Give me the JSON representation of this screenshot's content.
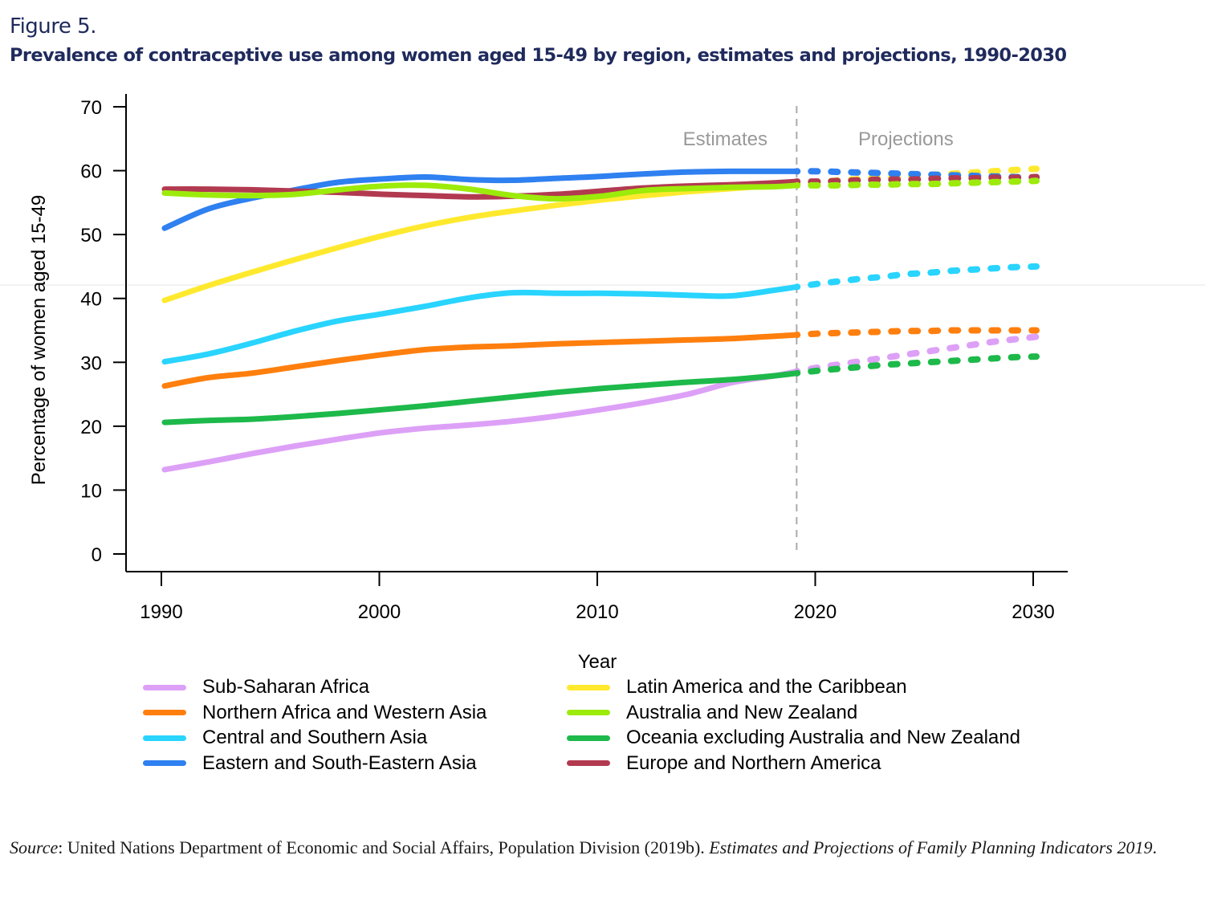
{
  "figure": {
    "label": "Figure 5.",
    "title": "Prevalence of contraceptive use among women aged 15-49 by region, estimates and projections, 1990-2030"
  },
  "source": {
    "prefix": "Source",
    "body": ": United Nations Department of Economic and Social Affairs, Population Division (2019b). ",
    "publication": "Estimates and Projections of Family Planning Indicators 2019",
    "suffix": "."
  },
  "chart_data": {
    "type": "line",
    "title": "Prevalence of contraceptive use among women aged 15-49 by region, estimates and projections, 1990-2030",
    "xlabel": "Year",
    "ylabel": "Percentage of women aged 15-49",
    "xlim": [
      1988.5,
      2031.5
    ],
    "ylim": [
      0,
      70
    ],
    "xticks": [
      1990,
      2000,
      2010,
      2020,
      2030
    ],
    "yticks": [
      0,
      10,
      20,
      30,
      40,
      50,
      60,
      70
    ],
    "grid": false,
    "legend_position": "bottom",
    "divider": {
      "year": 2019,
      "left_label": "Estimates",
      "right_label": "Projections"
    },
    "x_estimates": [
      1990,
      1992,
      1994,
      1996,
      1998,
      2000,
      2002,
      2004,
      2006,
      2008,
      2010,
      2012,
      2014,
      2016,
      2018,
      2019
    ],
    "x_projections": [
      2019,
      2020,
      2021,
      2022,
      2023,
      2024,
      2025,
      2026,
      2027,
      2028,
      2029,
      2030
    ],
    "series": [
      {
        "name": "Sub-Saharan Africa",
        "color": "#dda0f7",
        "estimates": [
          13.2,
          14.4,
          15.7,
          16.9,
          18.0,
          19.0,
          19.7,
          20.2,
          20.8,
          21.6,
          22.6,
          23.7,
          25.0,
          26.8,
          27.9,
          28.6
        ],
        "projections": [
          28.6,
          29.2,
          29.7,
          30.2,
          30.7,
          31.2,
          31.7,
          32.2,
          32.7,
          33.2,
          33.6,
          34.0
        ]
      },
      {
        "name": "Northern Africa and Western Asia",
        "color": "#ff7f0e",
        "estimates": [
          26.3,
          27.6,
          28.3,
          29.3,
          30.3,
          31.2,
          32.0,
          32.4,
          32.6,
          32.9,
          33.1,
          33.3,
          33.5,
          33.7,
          34.1,
          34.3
        ],
        "projections": [
          34.3,
          34.5,
          34.6,
          34.7,
          34.8,
          34.9,
          34.9,
          35.0,
          35.0,
          35.0,
          35.0,
          35.0
        ]
      },
      {
        "name": "Central and Southern Asia",
        "color": "#29d4ff",
        "estimates": [
          30.1,
          31.3,
          33.0,
          34.9,
          36.5,
          37.6,
          38.8,
          40.1,
          40.9,
          40.8,
          40.8,
          40.7,
          40.5,
          40.4,
          41.3,
          41.8
        ],
        "projections": [
          41.8,
          42.3,
          42.7,
          43.1,
          43.4,
          43.8,
          44.0,
          44.3,
          44.5,
          44.7,
          44.9,
          45.0
        ]
      },
      {
        "name": "Eastern and South-Eastern Asia",
        "color": "#2f80f0",
        "estimates": [
          51.0,
          54.0,
          55.7,
          57.0,
          58.2,
          58.7,
          59.0,
          58.6,
          58.5,
          58.8,
          59.1,
          59.5,
          59.8,
          59.9,
          59.9,
          59.9
        ],
        "projections": [
          59.9,
          59.9,
          59.8,
          59.7,
          59.6,
          59.5,
          59.4,
          59.3,
          59.2,
          59.1,
          59.0,
          58.9
        ]
      },
      {
        "name": "Latin America and the Caribbean",
        "color": "#ffe92e",
        "estimates": [
          39.7,
          42.0,
          44.1,
          46.1,
          48.0,
          49.8,
          51.4,
          52.7,
          53.7,
          54.6,
          55.4,
          56.1,
          56.7,
          57.2,
          57.7,
          58.0
        ],
        "projections": [
          58.0,
          58.2,
          58.5,
          58.7,
          58.9,
          59.1,
          59.3,
          59.5,
          59.7,
          59.9,
          60.1,
          60.3
        ]
      },
      {
        "name": "Australia and New Zealand",
        "color": "#9ceb0a",
        "estimates": [
          56.5,
          56.2,
          56.1,
          56.3,
          57.0,
          57.6,
          57.7,
          57.1,
          56.1,
          55.6,
          56.0,
          56.9,
          57.2,
          57.4,
          57.5,
          57.7
        ],
        "projections": [
          57.7,
          57.7,
          57.7,
          57.8,
          57.8,
          57.9,
          57.9,
          58.0,
          58.1,
          58.2,
          58.3,
          58.4
        ]
      },
      {
        "name": "Oceania excluding Australia and New Zealand",
        "color": "#1db94a",
        "estimates": [
          20.6,
          20.9,
          21.1,
          21.5,
          22.0,
          22.6,
          23.2,
          23.9,
          24.6,
          25.3,
          25.9,
          26.4,
          26.9,
          27.3,
          27.9,
          28.3
        ],
        "projections": [
          28.3,
          28.7,
          29.0,
          29.3,
          29.6,
          29.8,
          30.0,
          30.2,
          30.4,
          30.6,
          30.8,
          30.9
        ]
      },
      {
        "name": "Europe and Northern America",
        "color": "#b23a50",
        "estimates": [
          57.1,
          57.1,
          57.0,
          56.8,
          56.6,
          56.3,
          56.1,
          55.9,
          56.0,
          56.3,
          56.8,
          57.3,
          57.6,
          57.8,
          58.1,
          58.3
        ],
        "projections": [
          58.3,
          58.3,
          58.4,
          58.5,
          58.6,
          58.6,
          58.7,
          58.8,
          58.8,
          58.9,
          58.9,
          59.0
        ]
      }
    ]
  }
}
